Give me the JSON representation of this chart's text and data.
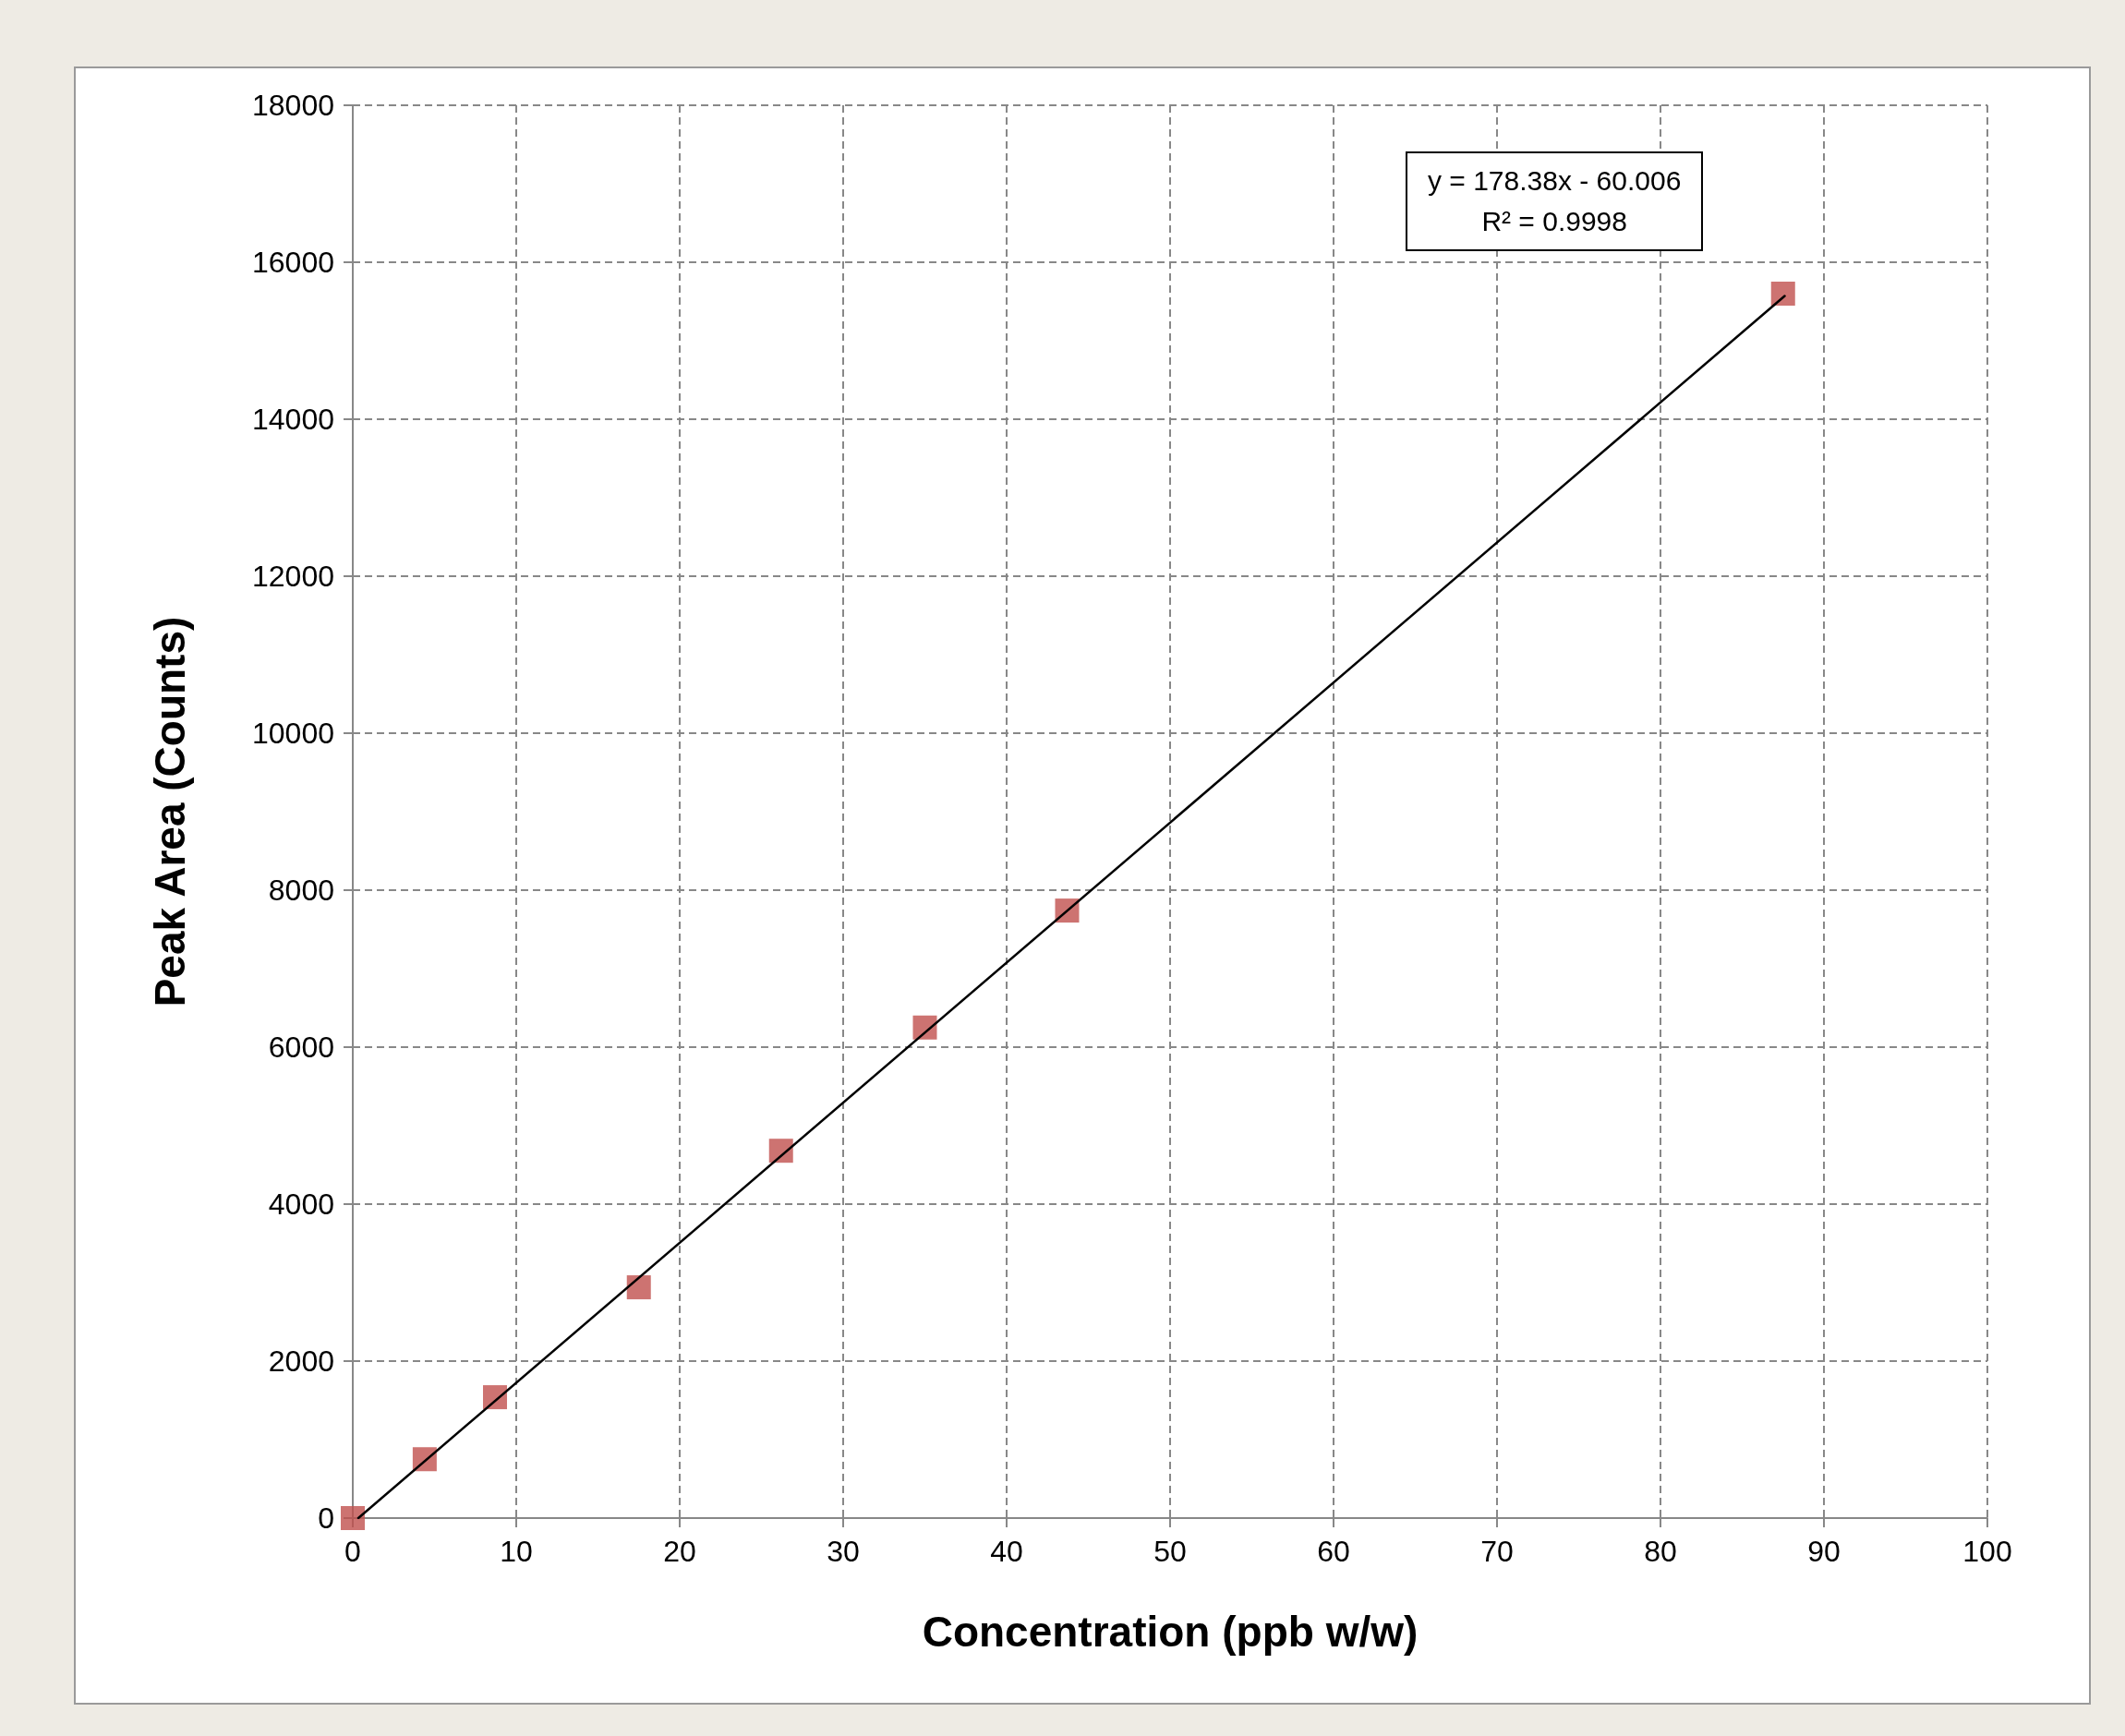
{
  "chart_data": {
    "type": "scatter",
    "xlabel": "Concentration (ppb w/w)",
    "ylabel": "Peak Area (Counts)",
    "x": [
      0,
      4.4,
      8.7,
      17.5,
      26.2,
      35,
      43.7,
      87.5
    ],
    "series": [
      {
        "color": "#c0504d",
        "marker": "square",
        "values": [
          0,
          750,
          1540,
          2940,
          4680,
          6250,
          7740,
          15600
        ]
      },
      {
        "type": "line",
        "color": "#000000",
        "marker": "none",
        "line_style": "solid",
        "x": [
          0.34,
          87.6
        ],
        "values": [
          0,
          15570
        ]
      }
    ],
    "xlim": [
      0,
      100
    ],
    "xticks": [
      0,
      10,
      20,
      30,
      40,
      50,
      60,
      70,
      80,
      90,
      100
    ],
    "ylim": [
      0,
      18000
    ],
    "yticks": [
      0,
      2000,
      4000,
      6000,
      8000,
      10000,
      12000,
      14000,
      16000,
      18000
    ],
    "grid": true,
    "annotations": [
      "y = 178.38x - 60.006",
      "R² = 0.9998"
    ]
  }
}
